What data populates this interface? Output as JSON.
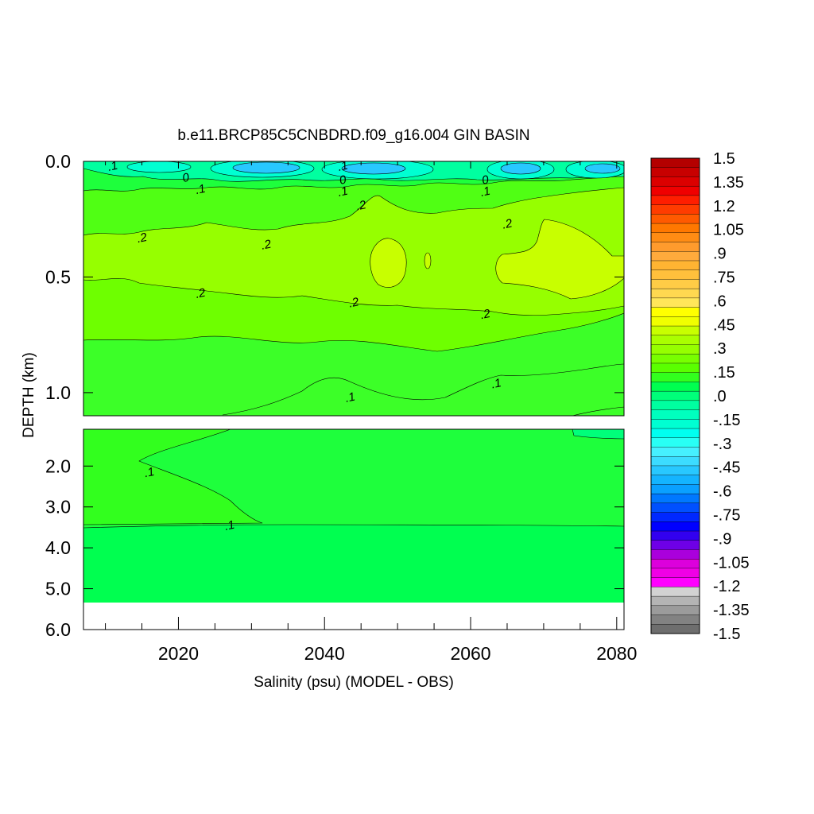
{
  "chart_data": {
    "type": "heatmap",
    "title": "b.e11.BRCP85C5CNBDRD.f09_g16.004 GIN BASIN",
    "xlabel": "Salinity (psu) (MODEL - OBS)",
    "ylabel": "DEPTH (km)",
    "xlim": [
      2007,
      2081
    ],
    "x_ticks": [
      "2020",
      "2040",
      "2060",
      "2080"
    ],
    "x_tick_values": [
      2020,
      2040,
      2060,
      2080
    ],
    "upper_panel": {
      "ylim": [
        0.0,
        1.1
      ],
      "y_ticks": [
        "0.0",
        "0.5",
        "1.0"
      ],
      "y_tick_values": [
        0.0,
        0.5,
        1.0
      ]
    },
    "lower_panel": {
      "ylim": [
        1.1,
        6.0
      ],
      "y_ticks": [
        "2.0",
        "3.0",
        "4.0",
        "5.0",
        "6.0"
      ],
      "y_tick_values": [
        2.0,
        3.0,
        4.0,
        5.0,
        6.0
      ],
      "data_bottom_depth": 5.35
    },
    "contour_labels": [
      {
        "text": ".1",
        "x": 2011,
        "depth": 0.02
      },
      {
        "text": "0",
        "x": 2021,
        "depth": 0.07
      },
      {
        "text": ".1",
        "x": 2023,
        "depth": 0.12
      },
      {
        "text": ".1",
        "x": 2042.5,
        "depth": 0.02
      },
      {
        "text": "0",
        "x": 2042.5,
        "depth": 0.08
      },
      {
        "text": ".1",
        "x": 2042.5,
        "depth": 0.13
      },
      {
        "text": ".2",
        "x": 2045,
        "depth": 0.19
      },
      {
        "text": "0",
        "x": 2062,
        "depth": 0.08
      },
      {
        "text": ".1",
        "x": 2062,
        "depth": 0.13
      },
      {
        "text": ".2",
        "x": 2065,
        "depth": 0.27
      },
      {
        "text": ".2",
        "x": 2015,
        "depth": 0.33
      },
      {
        "text": ".2",
        "x": 2032,
        "depth": 0.36
      },
      {
        "text": ".2",
        "x": 2023,
        "depth": 0.57
      },
      {
        "text": ".2",
        "x": 2044,
        "depth": 0.61
      },
      {
        "text": ".2",
        "x": 2062,
        "depth": 0.66
      },
      {
        "text": ".1",
        "x": 2043.5,
        "depth": 1.02
      },
      {
        "text": ".1",
        "x": 2063.5,
        "depth": 0.96
      },
      {
        "text": ".1",
        "x": 2016,
        "depth": 2.15
      },
      {
        "text": ".1",
        "x": 2027,
        "depth": 3.45
      }
    ],
    "colorbar": {
      "labels": [
        "1.5",
        "1.35",
        "1.2",
        "1.05",
        ".9",
        ".75",
        ".6",
        ".45",
        ".3",
        ".15",
        ".0",
        "-.15",
        "-.3",
        "-.45",
        "-.6",
        "-.75",
        "-.9",
        "-1.05",
        "-1.2",
        "-1.35",
        "-1.5"
      ],
      "colors": [
        "#b40000",
        "#c80000",
        "#dc0000",
        "#f00000",
        "#ff1e00",
        "#ff3c00",
        "#ff5a00",
        "#ff7800",
        "#ff8c14",
        "#ff9b2d",
        "#ffaa3c",
        "#ffb432",
        "#ffc03c",
        "#ffcc46",
        "#ffd850",
        "#ffe65a",
        "#ffff00",
        "#f0ff00",
        "#c8ff00",
        "#aaff00",
        "#96ff00",
        "#78ff00",
        "#5aff00",
        "#32ff1e",
        "#00ff50",
        "#00ff7a",
        "#00ffa0",
        "#00ffbe",
        "#00ffd2",
        "#00fff0",
        "#28fff5",
        "#46f0ff",
        "#3cdcff",
        "#28c8ff",
        "#14b4ff",
        "#0aa0ff",
        "#0078ff",
        "#0050ff",
        "#0028ff",
        "#0000ff",
        "#3200f0",
        "#6e00e6",
        "#aa00dc",
        "#dc00dc",
        "#f000e6",
        "#ff00ff",
        "#d2d2d2",
        "#b4b4b4",
        "#9b9b9b",
        "#828282",
        "#6e6e6e"
      ]
    }
  }
}
